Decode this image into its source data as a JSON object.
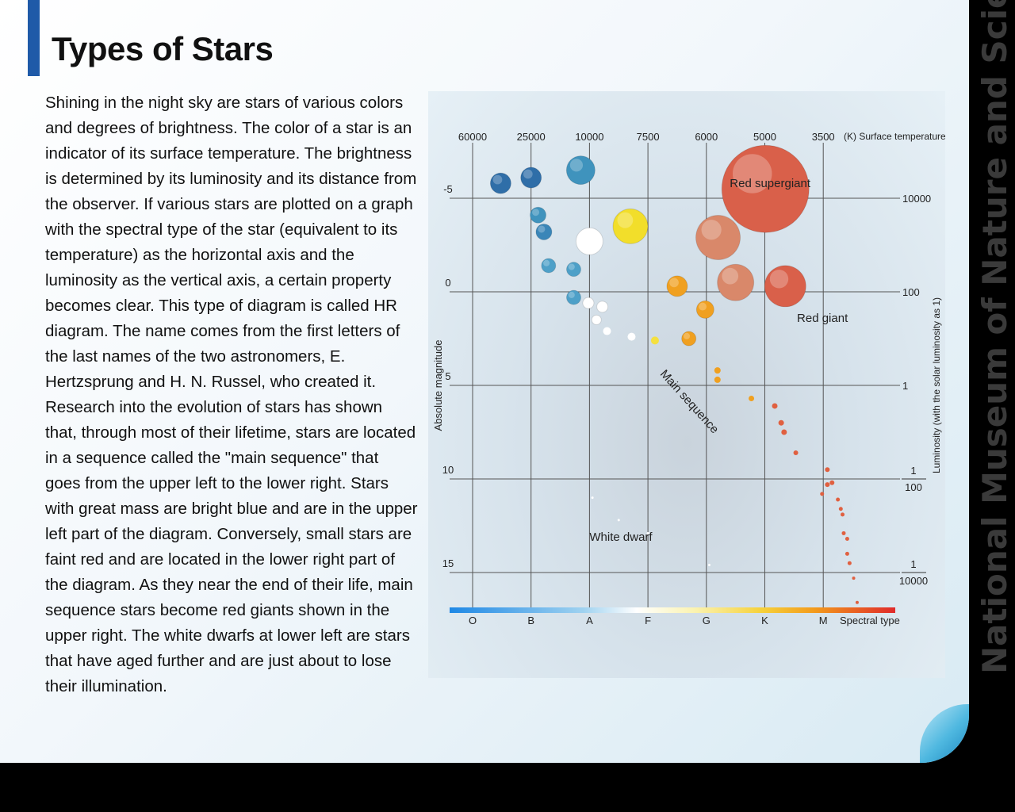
{
  "title": "Types of Stars",
  "brand": "National Museum of Nature and Science",
  "body_text": "Shining in the night sky are stars of various colors and degrees of brightness. The color of a star is an indicator of its surface temperature. The brightness is determined by its luminosity and its distance from the observer. If various stars are plotted on a graph with the spectral type of the star (equivalent to its temperature) as the horizontal axis and the luminosity as the vertical axis, a certain property becomes clear. This type of diagram is called HR diagram. The name comes from the first letters of the last names of the two astronomers, E. Hertzsprung and H. N. Russel, who created it. Research into the evolution of stars has shown that, through most of their lifetime, stars are located in a sequence called the \"main sequence\" that goes from the upper left to the lower right. Stars with great mass are bright blue and are in the upper left part of the diagram. Conversely, small stars are faint red and are located in the lower right part of the diagram. As they near the end of their life, main sequence stars become red giants shown in the upper right. The white dwarfs at lower left are stars that have aged further and are just about to lose their illumination.",
  "colors": {
    "accent": "#1f5aa8"
  },
  "chart_data": {
    "type": "scatter",
    "top_axis": {
      "label": "(K) Surface temperature",
      "ticks": [
        "60000",
        "25000",
        "10000",
        "7500",
        "6000",
        "5000",
        "3500"
      ]
    },
    "bottom_axis": {
      "label": "Spectral type",
      "ticks": [
        "O",
        "B",
        "A",
        "F",
        "G",
        "K",
        "M"
      ]
    },
    "left_axis": {
      "label": "Absolute magnitude",
      "ticks": [
        "-5",
        "0",
        "5",
        "10",
        "15"
      ],
      "range": [
        -9.5,
        17.5
      ],
      "inverted": true
    },
    "right_axis": {
      "label": "Luminosity (with the solar luminosity as 1)",
      "ticks": [
        {
          "mag": -5,
          "numerator": "10000",
          "denominator": ""
        },
        {
          "mag": 0,
          "numerator": "100",
          "denominator": ""
        },
        {
          "mag": 5,
          "numerator": "1",
          "denominator": ""
        },
        {
          "mag": 10,
          "numerator": "1",
          "denominator": "100"
        },
        {
          "mag": 15,
          "numerator": "1",
          "denominator": "10000"
        }
      ]
    },
    "region_labels": [
      {
        "text": "Red supergiant",
        "spec": 4.4,
        "mag": -5.6
      },
      {
        "text": "Red giant",
        "spec": 5.55,
        "mag": 1.6
      },
      {
        "text": "Main sequence",
        "spec": 3.2,
        "mag": 4.4,
        "rotate": 48
      },
      {
        "text": "White dwarf",
        "spec": 2.0,
        "mag": 13.3
      }
    ],
    "points": [
      {
        "spec": 0.48,
        "mag": -5.8,
        "size": 13,
        "color": "#2f6ea8"
      },
      {
        "spec": 1.0,
        "mag": -6.1,
        "size": 13,
        "color": "#2f6ea8"
      },
      {
        "spec": 1.85,
        "mag": -6.5,
        "size": 18,
        "color": "#3f93bd"
      },
      {
        "spec": 1.12,
        "mag": -4.1,
        "size": 10,
        "color": "#3f93bd"
      },
      {
        "spec": 1.22,
        "mag": -3.2,
        "size": 10,
        "color": "#3a86b8"
      },
      {
        "spec": 1.3,
        "mag": -1.4,
        "size": 9,
        "color": "#4ea0c8"
      },
      {
        "spec": 1.73,
        "mag": -1.2,
        "size": 9,
        "color": "#4ea0c8"
      },
      {
        "spec": 1.73,
        "mag": 0.3,
        "size": 9,
        "color": "#4ea0c8"
      },
      {
        "spec": 2.0,
        "mag": -2.7,
        "size": 17,
        "color": "#ffffff"
      },
      {
        "spec": 2.7,
        "mag": -3.5,
        "size": 22,
        "color": "#f2de2a"
      },
      {
        "spec": 4.2,
        "mag": -2.9,
        "size": 28,
        "color": "#d9886a"
      },
      {
        "spec": 4.5,
        "mag": -0.5,
        "size": 23,
        "color": "#d9886a"
      },
      {
        "spec": 5.01,
        "mag": -5.5,
        "size": 55,
        "color": "#d9604a"
      },
      {
        "spec": 5.35,
        "mag": -0.3,
        "size": 26,
        "color": "#d9604a"
      },
      {
        "spec": 3.5,
        "mag": -0.3,
        "size": 13,
        "color": "#f0a020"
      },
      {
        "spec": 3.98,
        "mag": 0.95,
        "size": 11,
        "color": "#f0a020"
      },
      {
        "spec": 3.7,
        "mag": 2.5,
        "size": 9,
        "color": "#f0a020"
      },
      {
        "spec": 1.98,
        "mag": 0.6,
        "size": 7,
        "color": "#ffffff"
      },
      {
        "spec": 2.22,
        "mag": 0.8,
        "size": 7,
        "color": "#ffffff"
      },
      {
        "spec": 2.12,
        "mag": 1.5,
        "size": 6,
        "color": "#ffffff"
      },
      {
        "spec": 2.3,
        "mag": 2.1,
        "size": 5,
        "color": "#ffffff"
      },
      {
        "spec": 2.72,
        "mag": 2.4,
        "size": 5,
        "color": "#ffffff"
      },
      {
        "spec": 3.12,
        "mag": 2.6,
        "size": 5,
        "color": "#f4e040"
      },
      {
        "spec": 4.19,
        "mag": 4.2,
        "size": 4,
        "color": "#f0a020"
      },
      {
        "spec": 4.19,
        "mag": 4.7,
        "size": 4,
        "color": "#f0a020"
      },
      {
        "spec": 4.77,
        "mag": 5.7,
        "size": 3.5,
        "color": "#f0a020"
      },
      {
        "spec": 5.17,
        "mag": 6.1,
        "size": 3.5,
        "color": "#e06040"
      },
      {
        "spec": 5.28,
        "mag": 7.0,
        "size": 3.5,
        "color": "#e06040"
      },
      {
        "spec": 5.33,
        "mag": 7.5,
        "size": 3.5,
        "color": "#e06040"
      },
      {
        "spec": 5.53,
        "mag": 8.6,
        "size": 3,
        "color": "#e06040"
      },
      {
        "spec": 6.07,
        "mag": 9.5,
        "size": 3,
        "color": "#e06040"
      },
      {
        "spec": 6.07,
        "mag": 10.3,
        "size": 3,
        "color": "#e06040"
      },
      {
        "spec": 6.15,
        "mag": 10.2,
        "size": 3,
        "color": "#e06040"
      },
      {
        "spec": 5.98,
        "mag": 10.8,
        "size": 2.5,
        "color": "#e06040"
      },
      {
        "spec": 6.25,
        "mag": 11.1,
        "size": 2.5,
        "color": "#e06040"
      },
      {
        "spec": 6.3,
        "mag": 11.6,
        "size": 2.5,
        "color": "#e06040"
      },
      {
        "spec": 6.33,
        "mag": 11.9,
        "size": 2.5,
        "color": "#e06040"
      },
      {
        "spec": 6.35,
        "mag": 12.9,
        "size": 2.5,
        "color": "#e06040"
      },
      {
        "spec": 6.41,
        "mag": 13.2,
        "size": 2.5,
        "color": "#e06040"
      },
      {
        "spec": 6.41,
        "mag": 14.0,
        "size": 2.5,
        "color": "#e06040"
      },
      {
        "spec": 6.45,
        "mag": 14.5,
        "size": 2.5,
        "color": "#e06040"
      },
      {
        "spec": 6.52,
        "mag": 15.3,
        "size": 2,
        "color": "#e06040"
      },
      {
        "spec": 6.58,
        "mag": 16.6,
        "size": 2,
        "color": "#e06040"
      },
      {
        "spec": 2.05,
        "mag": 11.0,
        "size": 1.5,
        "color": "#ffffff"
      },
      {
        "spec": 2.5,
        "mag": 12.2,
        "size": 1.5,
        "color": "#ffffff"
      },
      {
        "spec": 3.0,
        "mag": 12.9,
        "size": 1.5,
        "color": "#ffffff"
      },
      {
        "spec": 4.05,
        "mag": 14.6,
        "size": 1.5,
        "color": "#ffffff"
      }
    ]
  }
}
